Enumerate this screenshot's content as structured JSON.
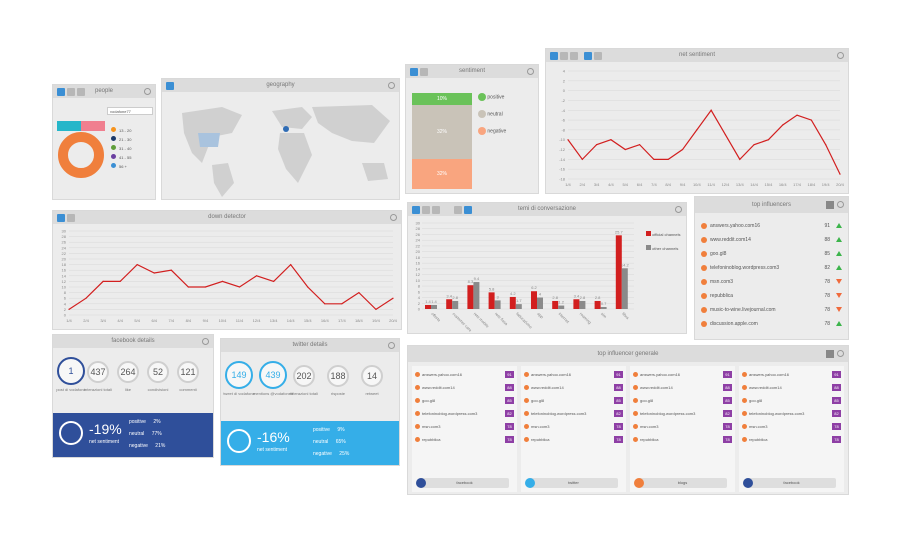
{
  "panels": {
    "people": {
      "title": "people",
      "filter": "vodafone77",
      "male_pct": "",
      "female_pct": "",
      "age_ranges": [
        "13 - 20",
        "21 - 30",
        "31 - 40",
        "41 - 55",
        "56 +"
      ],
      "age_colors": [
        "#f7941d",
        "#1b3a6b",
        "#5f9e3a",
        "#6a3fa0",
        "#3b8fd4"
      ]
    },
    "geography": {
      "title": "geography"
    },
    "sentiment": {
      "title": "sentiment",
      "positive_pct": "10%",
      "neutral_pct": "32%",
      "negative_pct": "32%",
      "positive": "positive",
      "neutral": "neutral",
      "negative": "negative"
    },
    "net_sentiment": {
      "title": "net sentiment",
      "y_ticks": [
        "4",
        "2",
        "0",
        "-2",
        "-4",
        "-6",
        "-8",
        "-10",
        "-12",
        "-14",
        "-16",
        "-18"
      ],
      "x_ticks": [
        "1/4",
        "2/4",
        "3/4",
        "4/4",
        "5/4",
        "6/4",
        "7/4",
        "8/4",
        "9/4",
        "10/4",
        "11/4",
        "12/4",
        "13/4",
        "14/4",
        "15/4",
        "16/4",
        "17/4",
        "18/4",
        "19/4",
        "20/4"
      ]
    },
    "down_detector": {
      "title": "down detector",
      "y_ticks": [
        "30",
        "28",
        "26",
        "24",
        "22",
        "20",
        "18",
        "16",
        "14",
        "12",
        "10",
        "8",
        "6",
        "4",
        "2",
        "0"
      ],
      "x_ticks": [
        "1/4",
        "2/4",
        "3/4",
        "4/4",
        "5/4",
        "6/4",
        "7/4",
        "8/4",
        "9/4",
        "10/4",
        "11/4",
        "12/4",
        "13/4",
        "14/4",
        "15/4",
        "16/4",
        "17/4",
        "18/4",
        "19/4",
        "20/4"
      ]
    },
    "temi": {
      "title": "temi di conversazione",
      "legend_official": "official channels",
      "legend_other": "other channels",
      "categories": [
        "offerte",
        "customer care",
        "rete mobile",
        "rete fissa",
        "fatturazione",
        "app",
        "internet",
        "roaming",
        "sim",
        "fibra"
      ]
    },
    "top_influencers": {
      "title": "top influencers",
      "rows": [
        {
          "name": "answers.yahoo.com16",
          "score": "91",
          "trend": "up"
        },
        {
          "name": "www.reddit.com14",
          "score": "88",
          "trend": "up"
        },
        {
          "name": "goo.gl8",
          "score": "85",
          "trend": "up"
        },
        {
          "name": "telefoninoblog.wordpress.com3",
          "score": "82",
          "trend": "up"
        },
        {
          "name": "msn.com3",
          "score": "78",
          "trend": "down"
        },
        {
          "name": "repubblica",
          "score": "78",
          "trend": "down"
        },
        {
          "name": "music-to-wine.livejournal.com",
          "score": "78",
          "trend": "down"
        },
        {
          "name": "discussion.apple.com",
          "score": "78",
          "trend": "up"
        }
      ]
    },
    "facebook_details": {
      "title": "facebook details",
      "stats": [
        {
          "value": "1",
          "label": "post di vodafone"
        },
        {
          "value": "437",
          "label": "interazioni totali"
        },
        {
          "value": "264",
          "label": "like"
        },
        {
          "value": "52",
          "label": "condivisioni"
        },
        {
          "value": "121",
          "label": "commenti"
        }
      ],
      "net": "-19%",
      "net_label": "net sentiment",
      "positive": "2%",
      "neutral": "77%",
      "negative": "21%",
      "pos_label": "positive",
      "neu_label": "neutral",
      "neg_label": "negative"
    },
    "twitter_details": {
      "title": "twitter details",
      "stats": [
        {
          "value": "149",
          "label": "tweet di vodafone"
        },
        {
          "value": "439",
          "label": "mentions @vodafoneit"
        },
        {
          "value": "202",
          "label": "interazioni totali"
        },
        {
          "value": "188",
          "label": "risposte"
        },
        {
          "value": "14",
          "label": "retweet"
        }
      ],
      "net": "-16%",
      "net_label": "net sentiment",
      "positive": "9%",
      "neutral": "65%",
      "negative": "25%",
      "pos_label": "positive",
      "neu_label": "neutral",
      "neg_label": "negative"
    },
    "top_generale": {
      "title": "top influencer generale",
      "columns": [
        {
          "footer": "facebook",
          "items": [
            [
              "answers.yahoo.com16",
              "91"
            ],
            [
              "www.reddit.com14",
              "88"
            ],
            [
              "goo.gl8",
              "85"
            ],
            [
              "telefoninoblog.wordpress.com3",
              "82"
            ],
            [
              "msn.com3",
              "78"
            ],
            [
              "repubblica",
              "78"
            ]
          ]
        },
        {
          "footer": "twitter",
          "items": [
            [
              "answers.yahoo.com16",
              "91"
            ],
            [
              "www.reddit.com14",
              "88"
            ],
            [
              "goo.gl8",
              "85"
            ],
            [
              "telefoninoblog.wordpress.com3",
              "82"
            ],
            [
              "msn.com3",
              "78"
            ],
            [
              "repubblica",
              "78"
            ]
          ]
        },
        {
          "footer": "blogs",
          "items": [
            [
              "answers.yahoo.com16",
              "91"
            ],
            [
              "www.reddit.com14",
              "88"
            ],
            [
              "goo.gl8",
              "85"
            ],
            [
              "telefoninoblog.wordpress.com3",
              "82"
            ],
            [
              "msn.com3",
              "78"
            ],
            [
              "repubblica",
              "78"
            ]
          ]
        },
        {
          "footer": "facebook",
          "items": [
            [
              "answers.yahoo.com16",
              "91"
            ],
            [
              "www.reddit.com14",
              "88"
            ],
            [
              "goo.gl8",
              "85"
            ],
            [
              "telefoninoblog.wordpress.com3",
              "82"
            ],
            [
              "msn.com3",
              "78"
            ],
            [
              "repubblica",
              "78"
            ]
          ]
        }
      ]
    }
  },
  "colors": {
    "blue": "#2f4f9a",
    "cyan": "#35aee8",
    "red": "#d21f1f",
    "gray": "#8a8a8a",
    "positive": "#6ac259",
    "negative": "#f9a57f"
  },
  "chart_data": [
    {
      "type": "line",
      "title": "net sentiment",
      "x": [
        "1/4",
        "2/4",
        "3/4",
        "4/4",
        "5/4",
        "6/4",
        "7/4",
        "8/4",
        "9/4",
        "10/4",
        "11/4",
        "12/4",
        "13/4",
        "14/4",
        "15/4",
        "16/4",
        "17/4",
        "18/4",
        "19/4",
        "20/4"
      ],
      "series": [
        {
          "values": [
            -10,
            -14,
            -11,
            -10,
            -12,
            -11,
            -14,
            -14,
            -12,
            -8,
            -4,
            -9,
            -14,
            -11,
            -10,
            -7,
            -5,
            -6,
            -11,
            -17
          ]
        }
      ],
      "ylim": [
        -18,
        4
      ]
    },
    {
      "type": "line",
      "title": "down detector",
      "x": [
        "1/4",
        "2/4",
        "3/4",
        "4/4",
        "5/4",
        "6/4",
        "7/4",
        "8/4",
        "9/4",
        "10/4",
        "11/4",
        "12/4",
        "13/4",
        "14/4",
        "15/4",
        "16/4",
        "17/4",
        "18/4",
        "19/4",
        "20/4"
      ],
      "series": [
        {
          "values": [
            2,
            6,
            12,
            12,
            18,
            15,
            16,
            10,
            10,
            12,
            10,
            14,
            12,
            18,
            10,
            4,
            4,
            8,
            2,
            6
          ]
        }
      ],
      "ylim": [
        0,
        30
      ]
    },
    {
      "type": "bar",
      "title": "temi di conversazione",
      "categories": [
        "offerte",
        "customer care",
        "rete mobile",
        "rete fissa",
        "fatturazione",
        "app",
        "internet",
        "roaming",
        "sim",
        "fibra"
      ],
      "series": [
        {
          "name": "official channels",
          "values": [
            1.4,
            3.4,
            8.3,
            5.8,
            4.2,
            6.2,
            2.8,
            3.4,
            2.8,
            25.7
          ]
        },
        {
          "name": "other channels",
          "values": [
            1.4,
            2.8,
            9.4,
            3.0,
            1.7,
            4.0,
            1.2,
            2.8,
            0.7,
            14.2
          ]
        }
      ],
      "ylim": [
        0,
        30
      ]
    }
  ]
}
